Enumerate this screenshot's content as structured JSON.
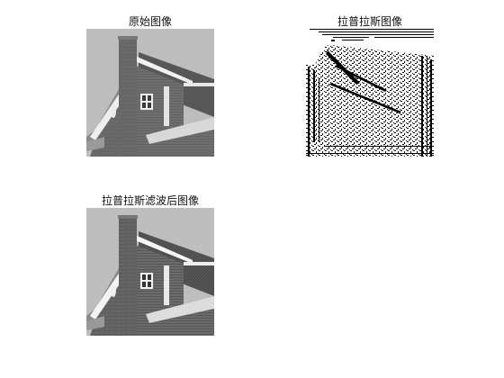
{
  "panels": [
    {
      "title": "原始图像"
    },
    {
      "title": "拉普拉斯图像"
    },
    {
      "title": "拉普拉斯滤波后图像"
    }
  ]
}
